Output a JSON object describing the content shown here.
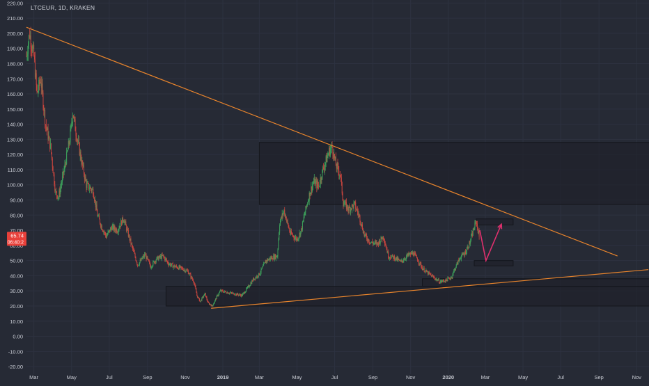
{
  "chart_data": {
    "type": "candlestick",
    "title": "LTCEUR, 1D, KRAKEN",
    "colors": {
      "background": "#262a35",
      "grid": "#2d3240",
      "axis_text": "#c9ccd4",
      "up_candle": "#3c9e5a",
      "down_candle": "#c8453e",
      "trendline": "#e8842c",
      "zone_fill": "#1e2129",
      "zone_border": "#14161c",
      "projection_arrow": "#e0306e",
      "price_label_bg": "#e8403a"
    },
    "y_axis": {
      "min": -25,
      "max": 222,
      "ticks": [
        "220.00",
        "210.00",
        "200.00",
        "190.00",
        "180.00",
        "170.00",
        "160.00",
        "150.00",
        "140.00",
        "130.00",
        "120.00",
        "110.00",
        "100.00",
        "90.00",
        "80.00",
        "70.00",
        "60.00",
        "50.00",
        "40.00",
        "30.00",
        "20.00",
        "10.00",
        "0.00",
        "-10.00",
        "-20.00"
      ]
    },
    "x_axis": {
      "range": [
        "2018-02-17",
        "2020-11-21"
      ],
      "ticks": [
        {
          "label": "Mar",
          "date": "2018-03-01"
        },
        {
          "label": "May",
          "date": "2018-05-01"
        },
        {
          "label": "Jul",
          "date": "2018-07-01"
        },
        {
          "label": "Sep",
          "date": "2018-09-01"
        },
        {
          "label": "Nov",
          "date": "2018-11-01"
        },
        {
          "label": "2019",
          "date": "2019-01-01"
        },
        {
          "label": "Mar",
          "date": "2019-03-01"
        },
        {
          "label": "May",
          "date": "2019-05-01"
        },
        {
          "label": "Jul",
          "date": "2019-07-01"
        },
        {
          "label": "Sep",
          "date": "2019-09-01"
        },
        {
          "label": "Nov",
          "date": "2019-11-01"
        },
        {
          "label": "2020",
          "date": "2020-01-01"
        },
        {
          "label": "Mar",
          "date": "2020-03-01"
        },
        {
          "label": "May",
          "date": "2020-05-01"
        },
        {
          "label": "Jul",
          "date": "2020-07-01"
        },
        {
          "label": "Sep",
          "date": "2020-09-01"
        },
        {
          "label": "Nov",
          "date": "2020-11-01"
        }
      ]
    },
    "price_path": [
      [
        "2018-02-17",
        185
      ],
      [
        "2018-02-22",
        200
      ],
      [
        "2018-03-01",
        185
      ],
      [
        "2018-03-06",
        160
      ],
      [
        "2018-03-12",
        170
      ],
      [
        "2018-03-20",
        140
      ],
      [
        "2018-03-28",
        125
      ],
      [
        "2018-04-05",
        95
      ],
      [
        "2018-04-10",
        92
      ],
      [
        "2018-04-20",
        112
      ],
      [
        "2018-04-28",
        130
      ],
      [
        "2018-05-03",
        148
      ],
      [
        "2018-05-08",
        135
      ],
      [
        "2018-05-16",
        118
      ],
      [
        "2018-05-25",
        100
      ],
      [
        "2018-06-05",
        96
      ],
      [
        "2018-06-12",
        80
      ],
      [
        "2018-06-18",
        73
      ],
      [
        "2018-06-26",
        66
      ],
      [
        "2018-07-05",
        72
      ],
      [
        "2018-07-14",
        70
      ],
      [
        "2018-07-24",
        78
      ],
      [
        "2018-08-01",
        67
      ],
      [
        "2018-08-10",
        55
      ],
      [
        "2018-08-16",
        47
      ],
      [
        "2018-08-28",
        54
      ],
      [
        "2018-09-06",
        46
      ],
      [
        "2018-09-15",
        51
      ],
      [
        "2018-09-26",
        53
      ],
      [
        "2018-10-05",
        48
      ],
      [
        "2018-10-15",
        46
      ],
      [
        "2018-10-25",
        45
      ],
      [
        "2018-11-05",
        43
      ],
      [
        "2018-11-15",
        36
      ],
      [
        "2018-11-20",
        27
      ],
      [
        "2018-11-25",
        23
      ],
      [
        "2018-12-03",
        28
      ],
      [
        "2018-12-08",
        22
      ],
      [
        "2018-12-15",
        20
      ],
      [
        "2018-12-22",
        26
      ],
      [
        "2018-12-28",
        30
      ],
      [
        "2019-01-08",
        29
      ],
      [
        "2019-01-20",
        28
      ],
      [
        "2019-02-01",
        27
      ],
      [
        "2019-02-10",
        32
      ],
      [
        "2019-02-20",
        38
      ],
      [
        "2019-03-01",
        41
      ],
      [
        "2019-03-12",
        50
      ],
      [
        "2019-03-22",
        52
      ],
      [
        "2019-03-30",
        53
      ],
      [
        "2019-04-03",
        75
      ],
      [
        "2019-04-10",
        83
      ],
      [
        "2019-04-20",
        68
      ],
      [
        "2019-05-01",
        64
      ],
      [
        "2019-05-08",
        70
      ],
      [
        "2019-05-14",
        82
      ],
      [
        "2019-05-22",
        95
      ],
      [
        "2019-05-28",
        102
      ],
      [
        "2019-06-05",
        99
      ],
      [
        "2019-06-12",
        110
      ],
      [
        "2019-06-22",
        122
      ],
      [
        "2019-06-27",
        125
      ],
      [
        "2019-07-03",
        113
      ],
      [
        "2019-07-10",
        107
      ],
      [
        "2019-07-15",
        88
      ],
      [
        "2019-07-24",
        84
      ],
      [
        "2019-08-02",
        87
      ],
      [
        "2019-08-10",
        79
      ],
      [
        "2019-08-18",
        67
      ],
      [
        "2019-08-28",
        62
      ],
      [
        "2019-09-08",
        61
      ],
      [
        "2019-09-18",
        66
      ],
      [
        "2019-09-26",
        53
      ],
      [
        "2019-10-06",
        52
      ],
      [
        "2019-10-16",
        49
      ],
      [
        "2019-10-26",
        53
      ],
      [
        "2019-11-05",
        55
      ],
      [
        "2019-11-12",
        51
      ],
      [
        "2019-11-20",
        45
      ],
      [
        "2019-11-28",
        42
      ],
      [
        "2019-12-08",
        39
      ],
      [
        "2019-12-18",
        36
      ],
      [
        "2019-12-28",
        37
      ],
      [
        "2020-01-06",
        39
      ],
      [
        "2020-01-12",
        45
      ],
      [
        "2020-01-20",
        52
      ],
      [
        "2020-01-28",
        55
      ],
      [
        "2020-02-05",
        62
      ],
      [
        "2020-02-12",
        72
      ],
      [
        "2020-02-15",
        76
      ],
      [
        "2020-02-18",
        70
      ],
      [
        "2020-02-20",
        65.74
      ]
    ],
    "trendlines": [
      {
        "name": "descending-resistance",
        "start": [
          "2018-02-17",
          204
        ],
        "end": [
          "2020-10-01",
          53
        ]
      },
      {
        "name": "ascending-support",
        "start": [
          "2018-12-13",
          18.5
        ],
        "end": [
          "2020-11-20",
          44
        ]
      }
    ],
    "zones": [
      {
        "name": "upper-resistance-zone",
        "x0": "2019-03-01",
        "x1": "2020-11-22",
        "y0": 87,
        "y1": 128
      },
      {
        "name": "lower-support-zone",
        "x0": "2018-10-01",
        "x1": "2020-11-22",
        "y0": 20,
        "y1": 33
      },
      {
        "name": "support-zone-2020",
        "x0": "2019-11-20",
        "x1": "2020-11-22",
        "y0": 33,
        "y1": 38
      },
      {
        "name": "target-box-upper",
        "x0": "2020-02-15",
        "x1": "2020-04-15",
        "y0": 73.5,
        "y1": 77.5
      },
      {
        "name": "target-box-lower",
        "x0": "2020-02-12",
        "x1": "2020-04-15",
        "y0": 46.5,
        "y1": 50
      }
    ],
    "projection": [
      [
        "2020-02-21",
        70
      ],
      [
        "2020-03-02",
        50
      ],
      [
        "2020-03-27",
        74
      ]
    ],
    "last_price": {
      "value": "65.74",
      "countdown": "06:40:2"
    }
  }
}
